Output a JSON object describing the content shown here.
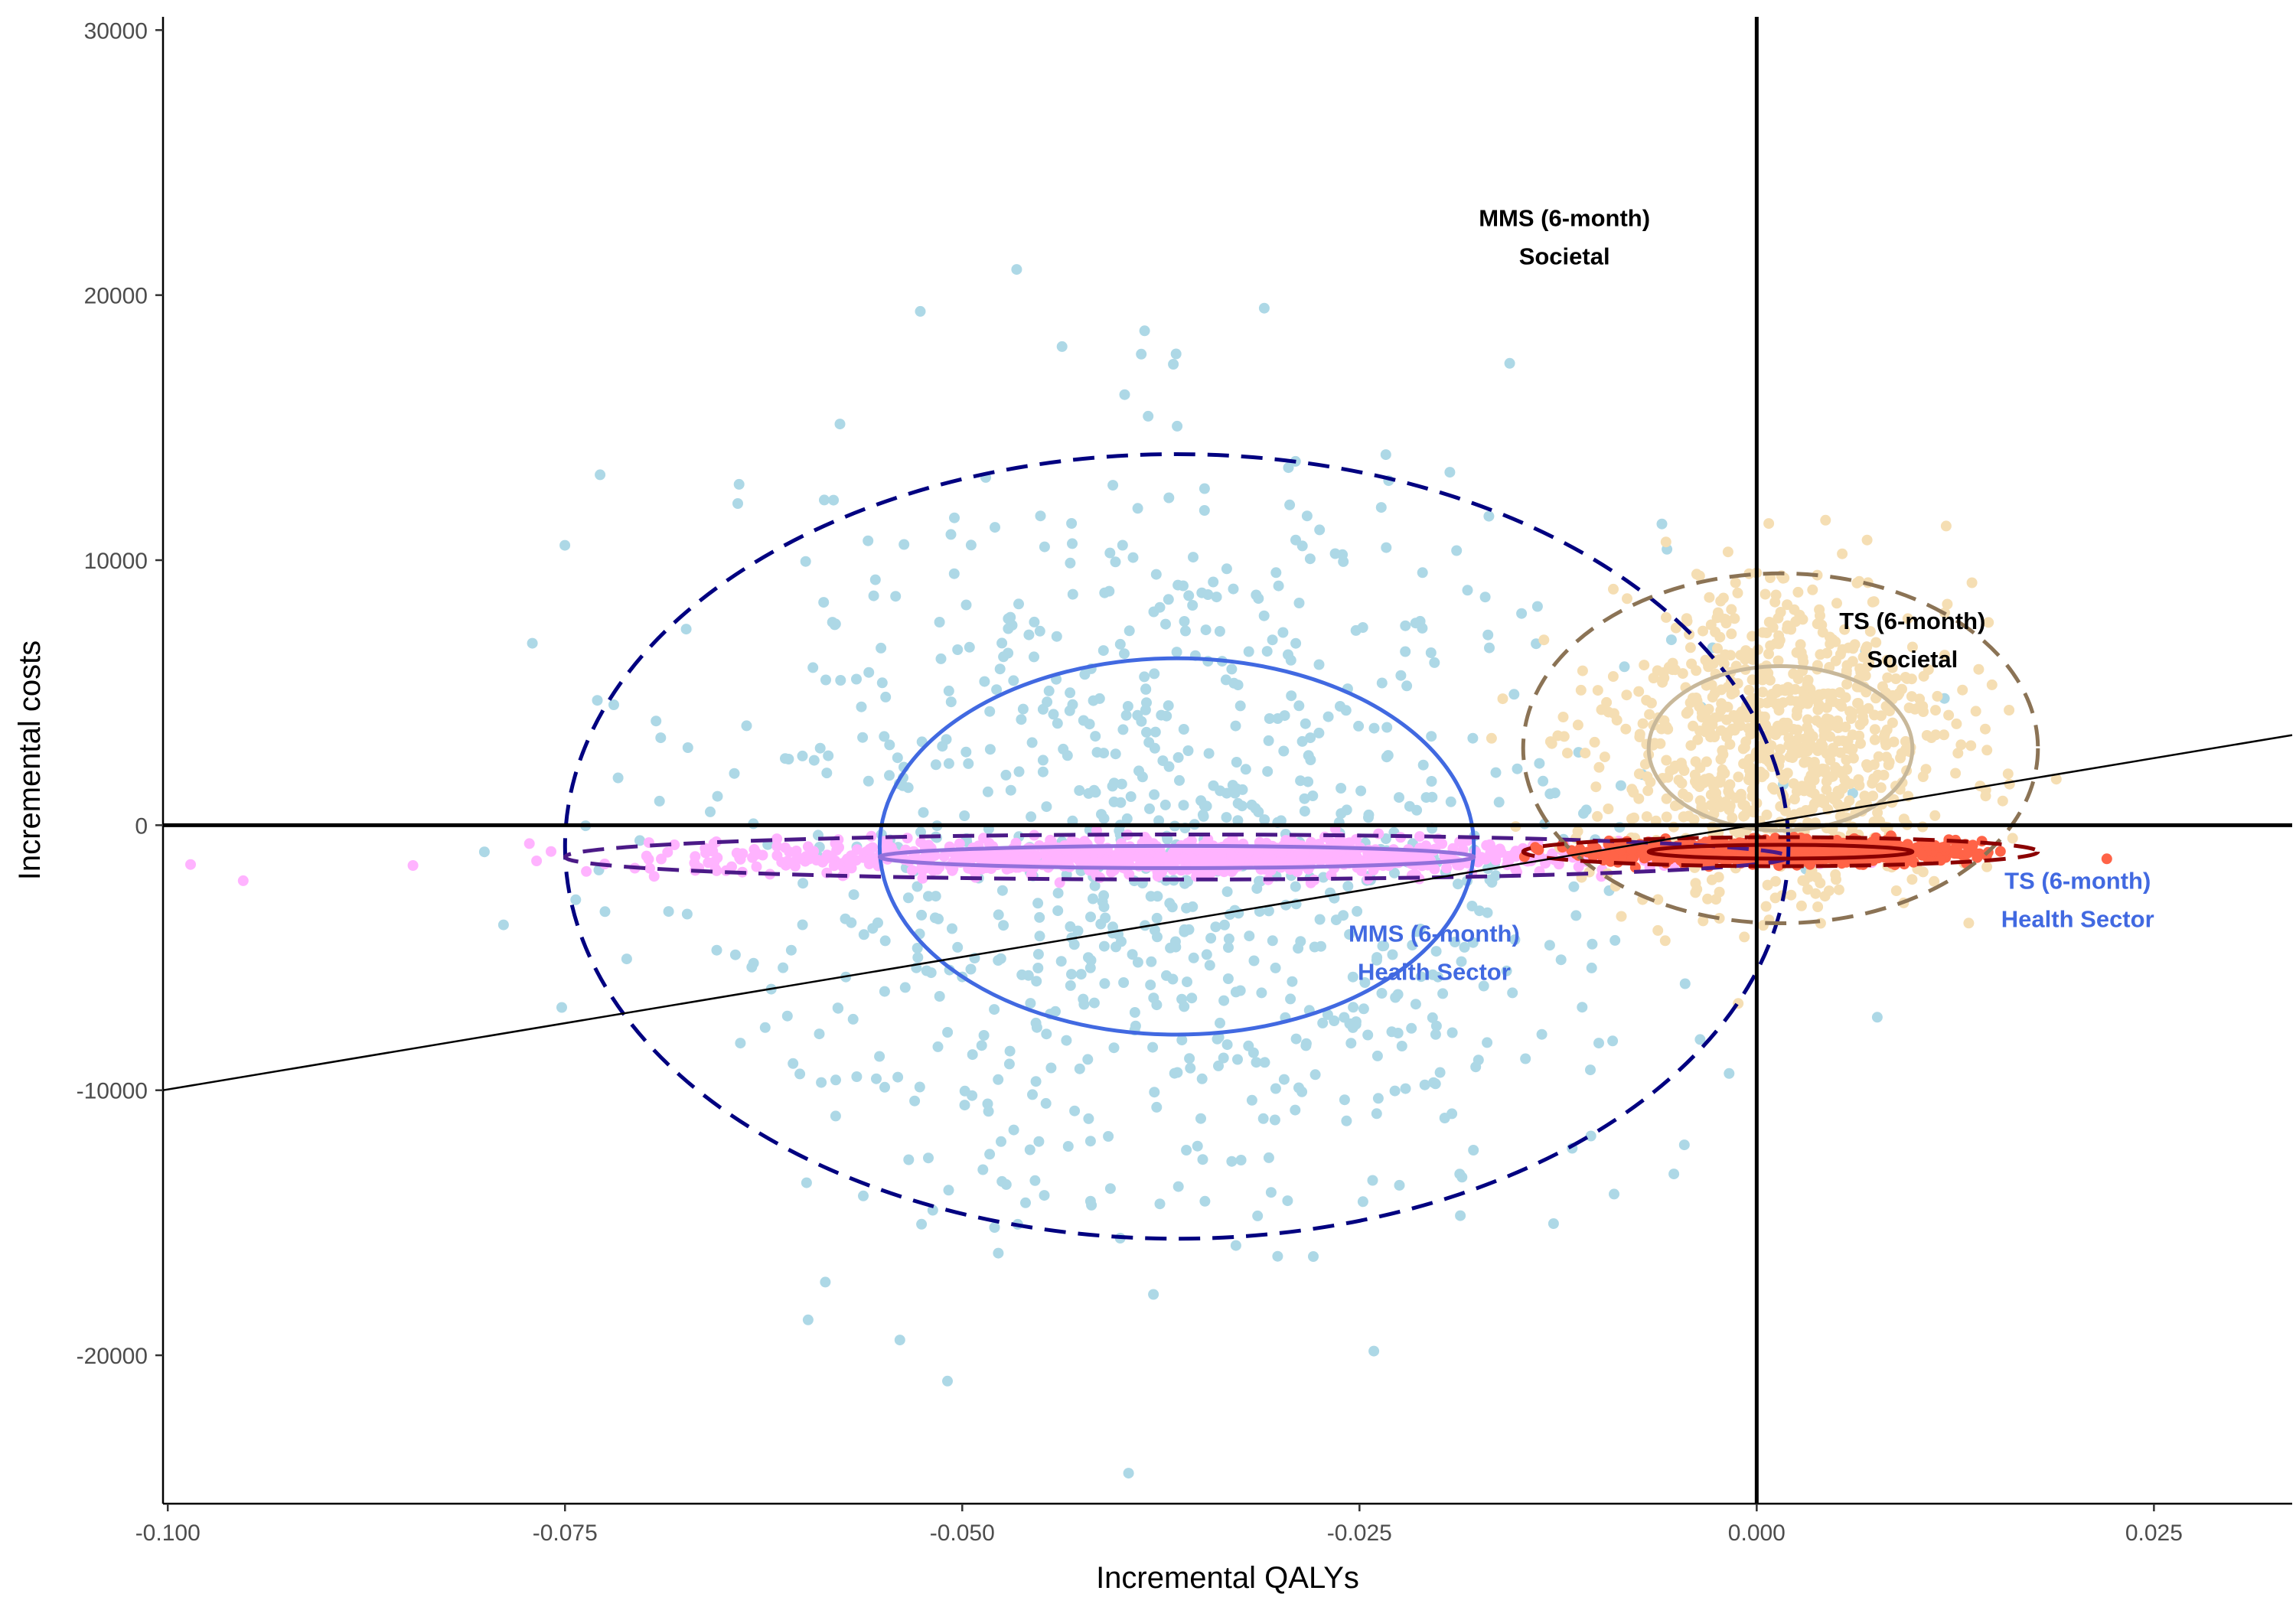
{
  "chart_data": {
    "type": "scatter",
    "title": "",
    "xlabel": "Incremental QALYs",
    "ylabel": "Incremental costs",
    "xlim": [
      -0.1003,
      0.0337
    ],
    "ylim": [
      -25600,
      30500
    ],
    "x_ticks": [
      -0.1,
      -0.075,
      -0.05,
      -0.025,
      0.0,
      0.025
    ],
    "x_tick_labels": [
      "-0.100",
      "-0.075",
      "-0.050",
      "-0.025",
      "0.000",
      "0.025"
    ],
    "y_ticks": [
      -20000,
      -10000,
      0,
      10000,
      20000,
      30000
    ],
    "y_tick_labels": [
      "-20000",
      "-10000",
      "0",
      "10000",
      "20000",
      "30000"
    ],
    "grid": false,
    "reference_lines": {
      "x_zero": 0,
      "y_zero": 0,
      "wtp_line": {
        "x1": -0.1003,
        "y1": -10000,
        "x2": 0.0337,
        "y2": 3400
      }
    },
    "colors": {
      "mms_societal": "#add8e6",
      "mms_health": "#ffb3ff",
      "ts_societal": "#f5deb3",
      "ts_health": "#ff6347",
      "ellipse_mms_societal": "#000080",
      "ellipse_mms_health_sector": "#4b1a87",
      "ellipse_mms_inner": "#4169e1",
      "ellipse_mms_health_inner": "#9370db",
      "ellipse_ts_societal": "#8b7355",
      "ellipse_ts_inner": "#c8b89a",
      "ellipse_ts_health": "#8b0000"
    },
    "series": [
      {
        "name": "MMS (6-month) Societal",
        "n": 900,
        "mean_x": -0.0365,
        "sd_x": 0.015,
        "mean_y": -800,
        "sd_y": 7200
      },
      {
        "name": "MMS (6-month) Health Sector",
        "n": 900,
        "mean_x": -0.0365,
        "sd_x": 0.015,
        "mean_y": -1200,
        "sd_y": 320
      },
      {
        "name": "TS (6-month) Societal",
        "n": 900,
        "mean_x": 0.0015,
        "sd_x": 0.0055,
        "mean_y": 3000,
        "sd_y": 3000
      },
      {
        "name": "TS (6-month) Health Sector",
        "n": 900,
        "mean_x": 0.0015,
        "sd_x": 0.0055,
        "mean_y": -1000,
        "sd_y": 200
      }
    ],
    "ellipses": [
      {
        "cx": -0.0365,
        "cy": -800,
        "rx": 0.0385,
        "ry": 14800,
        "style": "dashed",
        "color_key": "ellipse_mms_societal"
      },
      {
        "cx": -0.0365,
        "cy": -800,
        "rx": 0.0187,
        "ry": 7100,
        "style": "solid",
        "color_key": "ellipse_mms_inner"
      },
      {
        "cx": -0.0365,
        "cy": -1200,
        "rx": 0.0385,
        "ry": 850,
        "style": "dashed",
        "color_key": "ellipse_mms_health_sector"
      },
      {
        "cx": -0.0365,
        "cy": -1200,
        "rx": 0.0187,
        "ry": 420,
        "style": "solid",
        "color_key": "ellipse_mms_health_inner"
      },
      {
        "cx": 0.0015,
        "cy": 2900,
        "rx": 0.0162,
        "ry": 6600,
        "style": "dashed",
        "color_key": "ellipse_ts_societal"
      },
      {
        "cx": 0.0015,
        "cy": 2900,
        "rx": 0.0083,
        "ry": 3100,
        "style": "solid",
        "color_key": "ellipse_ts_inner"
      },
      {
        "cx": 0.0015,
        "cy": -1000,
        "rx": 0.0162,
        "ry": 550,
        "style": "dashed",
        "color_key": "ellipse_ts_health"
      },
      {
        "cx": 0.0015,
        "cy": -1000,
        "rx": 0.0083,
        "ry": 260,
        "style": "solid",
        "color_key": "ellipse_ts_health"
      }
    ],
    "annotations": [
      {
        "lines": [
          "MMS (6-month)",
          "Societal"
        ],
        "x": -0.0121,
        "y": 22600,
        "color": "#000000"
      },
      {
        "lines": [
          "TS (6-month)",
          "Societal"
        ],
        "x": 0.0098,
        "y": 7400,
        "color": "#000000"
      },
      {
        "lines": [
          "MMS (6-month)",
          "Health Sector"
        ],
        "x": -0.0203,
        "y": -4400,
        "color": "#4169e1"
      },
      {
        "lines": [
          "TS (6-month)",
          "Health Sector"
        ],
        "x": 0.0202,
        "y": -2400,
        "color": "#4169e1"
      }
    ]
  }
}
